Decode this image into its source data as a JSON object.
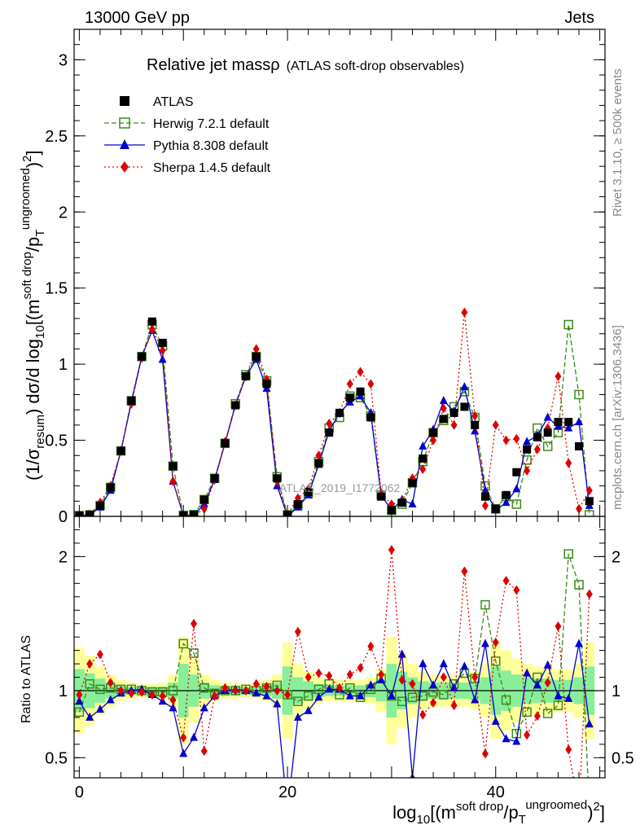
{
  "header": {
    "left": "13000 GeV pp",
    "right": "Jets"
  },
  "side_labels": {
    "rivet": "Rivet 3.1.10, ≥ 500k events",
    "mcplots": "mcplots.cern.ch [arXiv:1306.3436]"
  },
  "watermark": "ATLAS_2019_I1772062",
  "colors": {
    "atlas": "#000000",
    "herwig": "#3a8a1a",
    "pythia": "#0000cc",
    "sherpa": "#dd0000",
    "band_yellow": "#ffff99",
    "band_green": "#88ee99"
  },
  "chart_data": [
    {
      "type": "line",
      "title": "Relative jet massρ",
      "title_note": "(ATLAS soft-drop observables)",
      "ylabel": "(1/σresum) dσ/d log10[(m^soft drop/pT^ungroomed)^2]",
      "xlim": [
        -0.5,
        50.5
      ],
      "ylim": [
        0,
        3.2
      ],
      "yticks": [
        "0",
        "0.5",
        "1",
        "1.5",
        "2",
        "2.5",
        "3"
      ],
      "legend_position": "top-left",
      "series": [
        {
          "name": "ATLAS",
          "style": "marker",
          "x": [
            0,
            1,
            2,
            3,
            4,
            5,
            6,
            7,
            8,
            9,
            10,
            11,
            12,
            13,
            14,
            15,
            16,
            17,
            18,
            19,
            20,
            21,
            22,
            23,
            24,
            25,
            26,
            27,
            28,
            29,
            30,
            31,
            32,
            33,
            34,
            35,
            36,
            37,
            38,
            39,
            40,
            41,
            42,
            43,
            44,
            45,
            46,
            47,
            48,
            49
          ],
          "values": [
            0.005,
            0.01,
            0.07,
            0.19,
            0.43,
            0.76,
            1.05,
            1.28,
            1.14,
            0.33,
            0.005,
            0.01,
            0.11,
            0.25,
            0.48,
            0.73,
            0.92,
            1.05,
            0.87,
            0.25,
            0.01,
            0.08,
            0.16,
            0.35,
            0.55,
            0.68,
            0.78,
            0.82,
            0.65,
            0.13,
            0.04,
            0.09,
            0.22,
            0.38,
            0.55,
            0.64,
            0.68,
            0.72,
            0.6,
            0.13,
            0.05,
            0.14,
            0.29,
            0.44,
            0.52,
            0.55,
            0.62,
            0.62,
            0.46,
            0.1
          ]
        },
        {
          "name": "Herwig 7.2.1 default",
          "style": "dashed-open-square",
          "x": [
            0,
            1,
            2,
            3,
            4,
            5,
            6,
            7,
            8,
            9,
            10,
            11,
            12,
            13,
            14,
            15,
            16,
            17,
            18,
            19,
            20,
            21,
            22,
            23,
            24,
            25,
            26,
            27,
            28,
            29,
            30,
            31,
            32,
            33,
            34,
            35,
            36,
            37,
            38,
            39,
            40,
            41,
            42,
            43,
            44,
            45,
            46,
            47,
            48,
            49
          ],
          "values": [
            0.005,
            0.01,
            0.07,
            0.19,
            0.43,
            0.76,
            1.05,
            1.26,
            1.12,
            0.33,
            0.007,
            0.012,
            0.11,
            0.25,
            0.48,
            0.74,
            0.93,
            1.05,
            0.89,
            0.26,
            0.01,
            0.07,
            0.15,
            0.36,
            0.58,
            0.65,
            0.79,
            0.78,
            0.66,
            0.14,
            0.04,
            0.08,
            0.22,
            0.36,
            0.55,
            0.63,
            0.72,
            0.82,
            0.65,
            0.2,
            0.05,
            0.13,
            0.08,
            0.37,
            0.58,
            0.46,
            0.55,
            1.26,
            0.8,
            0.01
          ]
        },
        {
          "name": "Pythia 8.308 default",
          "style": "solid-triangle",
          "x": [
            0,
            1,
            2,
            3,
            4,
            5,
            6,
            7,
            8,
            9,
            10,
            11,
            12,
            13,
            14,
            15,
            16,
            17,
            18,
            19,
            20,
            21,
            22,
            23,
            24,
            25,
            26,
            27,
            28,
            29,
            30,
            31,
            32,
            33,
            34,
            35,
            36,
            37,
            38,
            39,
            40,
            41,
            42,
            43,
            44,
            45,
            46,
            47,
            48,
            49
          ],
          "values": [
            0.005,
            0.008,
            0.06,
            0.17,
            0.43,
            0.75,
            1.05,
            1.22,
            1.03,
            0.23,
            0.003,
            0.006,
            0.08,
            0.24,
            0.48,
            0.73,
            0.92,
            1.03,
            0.84,
            0.2,
            0.001,
            0.06,
            0.14,
            0.34,
            0.56,
            0.68,
            0.75,
            0.79,
            0.68,
            0.14,
            0.04,
            0.11,
            0.08,
            0.46,
            0.57,
            0.76,
            0.69,
            0.85,
            0.56,
            0.17,
            0.04,
            0.09,
            0.18,
            0.49,
            0.53,
            0.65,
            0.59,
            0.58,
            0.62,
            0.07
          ]
        },
        {
          "name": "Sherpa 1.4.5 default",
          "style": "dotted-diamond",
          "x": [
            0,
            1,
            2,
            3,
            4,
            5,
            6,
            7,
            8,
            9,
            10,
            11,
            12,
            13,
            14,
            15,
            16,
            17,
            18,
            19,
            20,
            21,
            22,
            23,
            24,
            25,
            26,
            27,
            28,
            29,
            30,
            31,
            32,
            33,
            34,
            35,
            36,
            37,
            38,
            39,
            40,
            41,
            42,
            43,
            44,
            45,
            46,
            47,
            48,
            49
          ],
          "values": [
            0.005,
            0.012,
            0.09,
            0.2,
            0.43,
            0.74,
            1.04,
            1.23,
            1.09,
            0.23,
            0.007,
            0.005,
            0.05,
            0.24,
            0.49,
            0.73,
            0.92,
            1.1,
            0.9,
            0.23,
            0.01,
            0.12,
            0.18,
            0.4,
            0.61,
            0.68,
            0.87,
            0.95,
            0.87,
            0.15,
            0.08,
            0.1,
            0.25,
            0.31,
            0.5,
            0.71,
            0.6,
            1.34,
            0.66,
            0.07,
            0.6,
            0.5,
            0.51,
            0.3,
            0.44,
            0.58,
            0.92,
            0.35,
            0.05,
            0.17
          ]
        }
      ]
    },
    {
      "type": "line",
      "title": "",
      "xlabel": "log10[(m^soft drop/pT^ungroomed)^2]",
      "ylabel": "Ratio to ATLAS",
      "xlim": [
        -0.5,
        50.5
      ],
      "ylim": [
        0.35,
        2.3
      ],
      "xticks": [
        "0",
        "20",
        "40"
      ],
      "yticks": [
        "0.5",
        "1",
        "2"
      ],
      "series": [
        {
          "name": "Herwig 7.2.1 default",
          "x": [
            0,
            1,
            2,
            3,
            4,
            5,
            6,
            7,
            8,
            9,
            10,
            11,
            12,
            13,
            14,
            15,
            16,
            17,
            18,
            19,
            20,
            21,
            22,
            23,
            24,
            25,
            26,
            27,
            28,
            29,
            30,
            31,
            32,
            33,
            34,
            35,
            36,
            37,
            38,
            39,
            40,
            41,
            42,
            43,
            44,
            45,
            46,
            47,
            48,
            49
          ],
          "values": [
            0.84,
            1.05,
            1.01,
            1.02,
            1.01,
            1.01,
            1.0,
            0.99,
            0.99,
            1.0,
            1.35,
            1.28,
            1.02,
            0.98,
            1.0,
            1.0,
            1.01,
            1.0,
            1.02,
            1.04,
            0.97,
            0.92,
            0.96,
            1.01,
            1.05,
            0.97,
            1.02,
            0.95,
            1.01,
            1.09,
            0.96,
            0.92,
            0.95,
            0.96,
            0.99,
            0.97,
            1.05,
            1.13,
            1.09,
            1.64,
            1.22,
            0.93,
            0.68,
            0.84,
            1.1,
            0.83,
            0.89,
            2.02,
            1.79,
            0.12
          ]
        },
        {
          "name": "Pythia 8.308 default",
          "x": [
            0,
            1,
            2,
            3,
            4,
            5,
            6,
            7,
            8,
            9,
            10,
            11,
            12,
            13,
            14,
            15,
            16,
            17,
            18,
            19,
            20,
            21,
            22,
            23,
            24,
            25,
            26,
            27,
            28,
            29,
            30,
            31,
            32,
            33,
            34,
            35,
            36,
            37,
            38,
            39,
            40,
            41,
            42,
            43,
            44,
            45,
            46,
            47,
            48,
            49
          ],
          "values": [
            0.92,
            0.8,
            0.86,
            0.93,
            0.98,
            1.0,
            1.01,
            0.97,
            0.92,
            0.87,
            0.53,
            0.65,
            0.87,
            0.96,
            1.0,
            1.01,
            1.0,
            0.98,
            0.96,
            0.9,
            0.1,
            0.8,
            0.85,
            0.95,
            1.01,
            1.01,
            0.96,
            0.96,
            1.04,
            1.08,
            0.96,
            1.27,
            0.35,
            1.2,
            1.04,
            1.2,
            1.02,
            1.18,
            0.93,
            1.35,
            0.77,
            0.64,
            0.62,
            1.13,
            1.04,
            1.19,
            0.96,
            0.94,
            1.35,
            0.75
          ]
        },
        {
          "name": "Sherpa 1.4.5 default",
          "x": [
            0,
            1,
            2,
            3,
            4,
            5,
            6,
            7,
            8,
            9,
            10,
            11,
            12,
            13,
            14,
            15,
            16,
            17,
            18,
            19,
            20,
            21,
            22,
            23,
            24,
            25,
            26,
            27,
            28,
            29,
            30,
            31,
            32,
            33,
            34,
            35,
            36,
            37,
            38,
            39,
            40,
            41,
            42,
            43,
            44,
            45,
            46,
            47,
            48,
            49
          ],
          "values": [
            0.97,
            1.2,
            1.27,
            1.06,
            1.0,
            0.98,
            0.99,
            0.97,
            0.96,
            0.93,
            0.65,
            1.5,
            0.55,
            0.96,
            1.02,
            1.0,
            1.0,
            1.05,
            1.03,
            1.0,
            0.97,
            1.44,
            1.1,
            1.13,
            1.11,
            1.02,
            1.12,
            1.17,
            1.33,
            1.12,
            2.05,
            1.08,
            1.05,
            0.82,
            0.91,
            1.1,
            0.89,
            1.89,
            1.1,
            0.53,
            1.36,
            1.82,
            1.75,
            0.67,
            0.81,
            1.06,
            1.48,
            0.56,
            0.11,
            1.72
          ]
        }
      ],
      "band_inner_halfwidth": [
        0.16,
        0.13,
        0.09,
        0.06,
        0.04,
        0.03,
        0.03,
        0.03,
        0.03,
        0.06,
        0.2,
        0.12,
        0.06,
        0.04,
        0.03,
        0.03,
        0.03,
        0.03,
        0.04,
        0.06,
        0.18,
        0.1,
        0.07,
        0.05,
        0.04,
        0.04,
        0.04,
        0.04,
        0.05,
        0.08,
        0.2,
        0.14,
        0.1,
        0.07,
        0.06,
        0.06,
        0.06,
        0.06,
        0.07,
        0.1,
        0.18,
        0.15,
        0.12,
        0.1,
        0.09,
        0.09,
        0.08,
        0.08,
        0.1,
        0.18
      ],
      "band_outer_halfwidth": [
        0.32,
        0.26,
        0.18,
        0.12,
        0.08,
        0.06,
        0.05,
        0.05,
        0.06,
        0.12,
        0.4,
        0.24,
        0.12,
        0.08,
        0.06,
        0.06,
        0.05,
        0.06,
        0.08,
        0.12,
        0.36,
        0.2,
        0.14,
        0.1,
        0.08,
        0.08,
        0.08,
        0.08,
        0.1,
        0.16,
        0.4,
        0.28,
        0.2,
        0.14,
        0.12,
        0.12,
        0.12,
        0.12,
        0.14,
        0.2,
        0.36,
        0.3,
        0.24,
        0.2,
        0.18,
        0.18,
        0.16,
        0.16,
        0.2,
        0.36
      ]
    }
  ]
}
